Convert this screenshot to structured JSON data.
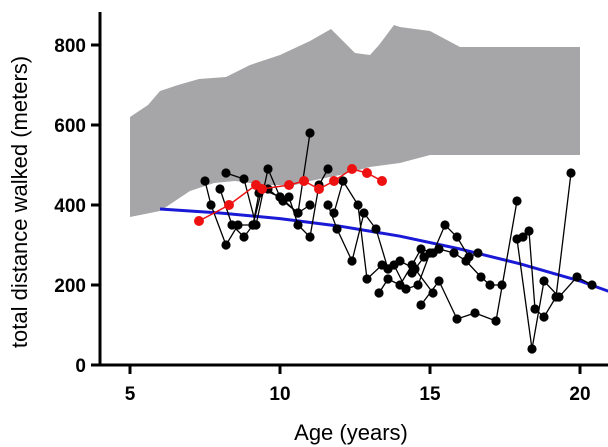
{
  "chart_data": {
    "type": "scatter",
    "title": "",
    "xlabel": "Age (years)",
    "ylabel": "total distance walked (meters)",
    "xlim": [
      4,
      21
    ],
    "ylim": [
      0,
      860
    ],
    "xticks": [
      5,
      10,
      15,
      20
    ],
    "yticks": [
      0,
      200,
      400,
      600,
      800
    ],
    "grid": false,
    "legend": "none",
    "colors": {
      "band": "#a6a6a8",
      "patients": "#000000",
      "highlight": "#ee1111",
      "trend": "#1a1ad6"
    },
    "reference_band": {
      "upper": [
        [
          5.0,
          620
        ],
        [
          5.6,
          650
        ],
        [
          6.0,
          685
        ],
        [
          6.6,
          700
        ],
        [
          7.3,
          715
        ],
        [
          8.2,
          720
        ],
        [
          9.0,
          750
        ],
        [
          10.0,
          775
        ],
        [
          11.0,
          810
        ],
        [
          11.7,
          840
        ],
        [
          12.5,
          780
        ],
        [
          13.0,
          775
        ],
        [
          13.3,
          800
        ],
        [
          13.8,
          850
        ],
        [
          14.0,
          845
        ],
        [
          15.0,
          835
        ],
        [
          16.0,
          795
        ],
        [
          20.0,
          795
        ]
      ],
      "lower": [
        [
          5.0,
          370
        ],
        [
          6.0,
          385
        ],
        [
          7.0,
          435
        ],
        [
          7.8,
          455
        ],
        [
          8.5,
          460
        ],
        [
          9.5,
          450
        ],
        [
          10.5,
          450
        ],
        [
          11.0,
          460
        ],
        [
          12.0,
          475
        ],
        [
          13.0,
          495
        ],
        [
          14.0,
          505
        ],
        [
          15.0,
          525
        ],
        [
          20.0,
          525
        ]
      ]
    },
    "trend_line": {
      "x": [
        6.0,
        8.0,
        10.0,
        12.0,
        14.0,
        16.0,
        18.0,
        20.0,
        21.0
      ],
      "y": [
        390,
        380,
        366,
        347,
        322,
        290,
        253,
        210,
        183
      ]
    },
    "patient_series": [
      {
        "x": [
          7.5,
          7.7,
          8.2,
          8.6,
          9.1,
          9.4,
          10.0,
          10.6,
          11.0
        ],
        "y": [
          460,
          400,
          300,
          350,
          350,
          440,
          420,
          380,
          580
        ]
      },
      {
        "x": [
          8.2,
          8.8,
          9.2,
          9.6,
          10.0,
          10.3,
          10.6,
          11.0,
          11.3,
          11.6
        ],
        "y": [
          480,
          465,
          350,
          490,
          420,
          420,
          350,
          320,
          450,
          490
        ]
      },
      {
        "x": [
          8.0,
          8.4,
          8.8,
          9.1,
          9.3,
          9.6,
          10.1,
          10.6,
          11.0
        ],
        "y": [
          440,
          350,
          320,
          350,
          430,
          440,
          410,
          380,
          400
        ]
      },
      {
        "x": [
          11.6,
          11.9,
          12.4,
          12.8,
          13.2,
          13.6,
          14.0,
          14.5,
          15.1
        ],
        "y": [
          400,
          340,
          260,
          380,
          340,
          240,
          260,
          240,
          180
        ]
      },
      {
        "x": [
          11.8,
          12.1,
          12.6,
          12.9,
          13.4,
          13.8,
          14.2,
          14.6,
          15.0
        ],
        "y": [
          380,
          460,
          400,
          215,
          250,
          250,
          190,
          200,
          280
        ]
      },
      {
        "x": [
          13.3,
          13.6,
          14.0,
          14.4,
          14.7,
          15.1,
          15.5,
          15.9,
          16.3,
          16.6
        ],
        "y": [
          180,
          215,
          200,
          250,
          290,
          280,
          350,
          320,
          270,
          280
        ]
      },
      {
        "x": [
          14.4,
          14.8,
          15.3,
          15.8,
          16.2,
          16.7,
          17.0,
          17.4
        ],
        "y": [
          230,
          270,
          290,
          280,
          260,
          220,
          200,
          200
        ]
      },
      {
        "x": [
          14.7,
          15.3,
          15.9,
          16.5,
          17.2,
          17.9
        ],
        "y": [
          150,
          210,
          115,
          130,
          110,
          410
        ]
      },
      {
        "x": [
          18.1,
          18.3,
          18.5,
          18.8,
          19.2,
          19.7
        ],
        "y": [
          320,
          335,
          140,
          120,
          170,
          480
        ]
      },
      {
        "x": [
          17.9,
          18.4,
          18.8,
          19.3,
          19.9,
          20.4
        ],
        "y": [
          315,
          40,
          210,
          170,
          220,
          200
        ]
      }
    ],
    "highlight_series": {
      "x": [
        7.3,
        8.3,
        9.2,
        9.4,
        10.3,
        10.8,
        11.3,
        11.8,
        12.4,
        12.9,
        13.4
      ],
      "y": [
        360,
        400,
        450,
        440,
        450,
        460,
        440,
        460,
        490,
        480,
        460
      ]
    }
  }
}
